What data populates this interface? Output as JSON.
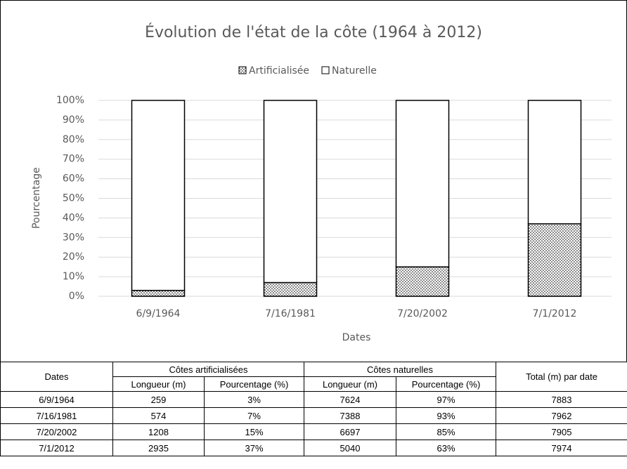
{
  "chart_data": {
    "type": "stacked_bar",
    "title": "Évolution de l'état de la côte (1964 à 2012)",
    "x_label": "Dates",
    "y_label": "Pourcentage",
    "categories": [
      "6/9/1964",
      "7/16/1981",
      "7/20/2002",
      "7/1/2012"
    ],
    "series": [
      {
        "name": "Artificialisée",
        "color": "#000000",
        "pattern": "dots",
        "values": [
          3,
          7,
          15,
          37
        ]
      },
      {
        "name": "Naturelle",
        "color": "#ffffff",
        "values": [
          97,
          93,
          85,
          63
        ]
      }
    ],
    "ylim": [
      0,
      100
    ],
    "yticks": [
      {
        "value": 0,
        "label": "0%"
      },
      {
        "value": 10,
        "label": "10%"
      },
      {
        "value": 20,
        "label": "20%"
      },
      {
        "value": 30,
        "label": "30%"
      },
      {
        "value": 40,
        "label": "40%"
      },
      {
        "value": 50,
        "label": "50%"
      },
      {
        "value": 60,
        "label": "60%"
      },
      {
        "value": 70,
        "label": "70%"
      },
      {
        "value": 80,
        "label": "80%"
      },
      {
        "value": 90,
        "label": "90%"
      },
      {
        "value": 100,
        "label": "100%"
      }
    ],
    "grid": true,
    "legend": "top"
  },
  "table": {
    "header_top": [
      "Dates",
      "Côtes artificialisées",
      "Côtes naturelles",
      "Total (m) par date"
    ],
    "header_sub": [
      "Longueur (m)",
      "Pourcentage (%)",
      "Longueur (m)",
      "Pourcentage (%)"
    ],
    "rows": [
      [
        "6/9/1964",
        "259",
        "3%",
        "7624",
        "97%",
        "7883"
      ],
      [
        "7/16/1981",
        "574",
        "7%",
        "7388",
        "93%",
        "7962"
      ],
      [
        "7/20/2002",
        "1208",
        "15%",
        "6697",
        "85%",
        "7905"
      ],
      [
        "7/1/2012",
        "2935",
        "37%",
        "5040",
        "63%",
        "7974"
      ]
    ]
  }
}
